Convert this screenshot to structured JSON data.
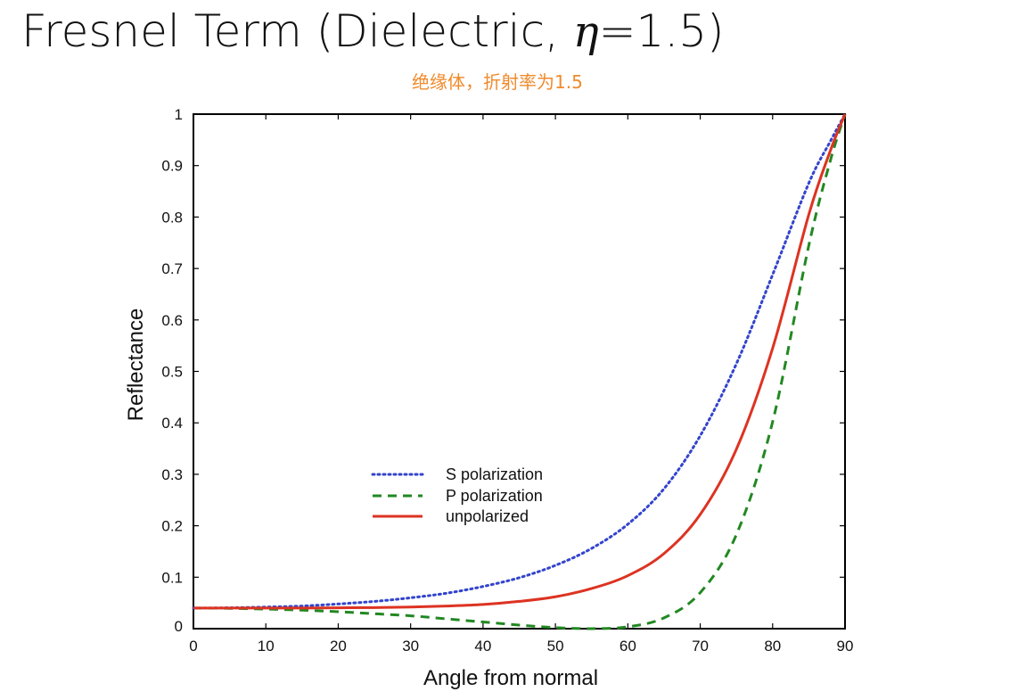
{
  "slide": {
    "title_prefix": "Fresnel Term (Dielectric, ",
    "title_symbol": "η",
    "title_suffix": "=1.5)",
    "annotation": "绝缘体，折射率为1.5"
  },
  "chart_data": {
    "type": "line",
    "xlabel": "Angle from normal",
    "ylabel": "Reflectance",
    "xlim": [
      0,
      90
    ],
    "ylim": [
      0,
      1
    ],
    "x_ticks": [
      "0",
      "10",
      "20",
      "30",
      "40",
      "50",
      "60",
      "70",
      "80",
      "90"
    ],
    "y_ticks": [
      "0",
      "0.1",
      "0.2",
      "0.3",
      "0.4",
      "0.5",
      "0.6",
      "0.7",
      "0.8",
      "0.9",
      "1"
    ],
    "grid": false,
    "legend_position": "center-left",
    "x": [
      0,
      5,
      10,
      15,
      20,
      25,
      30,
      35,
      40,
      45,
      50,
      55,
      60,
      65,
      70,
      75,
      80,
      85,
      88,
      90
    ],
    "series": [
      {
        "name": "S polarization",
        "style": "dotted",
        "color": "#3344cc",
        "values": [
          0.04,
          0.0405,
          0.042,
          0.044,
          0.048,
          0.053,
          0.06,
          0.069,
          0.082,
          0.099,
          0.123,
          0.156,
          0.203,
          0.272,
          0.375,
          0.515,
          0.688,
          0.866,
          0.948,
          1.0
        ]
      },
      {
        "name": "P polarization",
        "style": "dashed",
        "color": "#228822",
        "values": [
          0.04,
          0.0395,
          0.038,
          0.036,
          0.033,
          0.029,
          0.025,
          0.019,
          0.013,
          0.0069,
          0.002,
          3e-05,
          0.0036,
          0.021,
          0.07,
          0.183,
          0.402,
          0.745,
          0.911,
          1.0
        ]
      },
      {
        "name": "unpolarized",
        "style": "solid",
        "color": "#dd3322",
        "values": [
          0.04,
          0.04,
          0.04,
          0.04,
          0.0405,
          0.041,
          0.042,
          0.044,
          0.047,
          0.053,
          0.062,
          0.078,
          0.103,
          0.146,
          0.222,
          0.349,
          0.545,
          0.805,
          0.93,
          1.0
        ]
      }
    ]
  }
}
